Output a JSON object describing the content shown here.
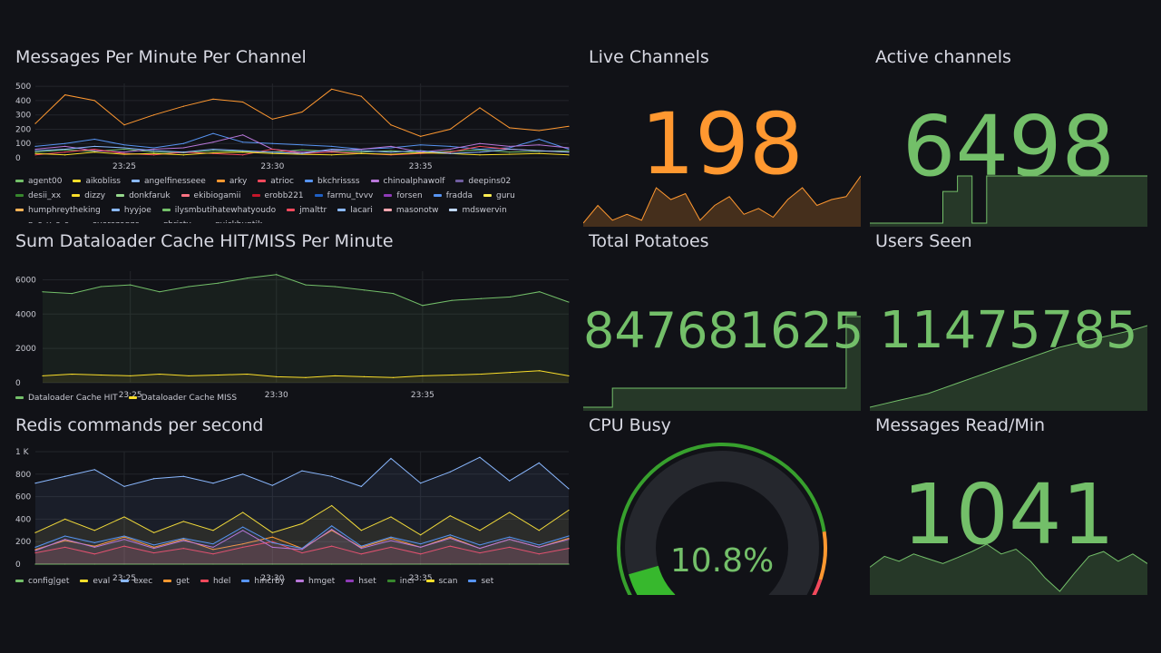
{
  "colors": {
    "background": "#111217",
    "green": "#73bf69",
    "orange": "#ff9830",
    "yellow": "#fade2a",
    "blue": "#5794f2",
    "red": "#f2495c"
  },
  "panels": {
    "messages_per_minute": {
      "title": "Messages Per Minute Per Channel",
      "legend": [
        "agent00",
        "aikobliss",
        "angelfinesseee",
        "arky",
        "atrioc",
        "bkchrissss",
        "chinoalphawolf",
        "deepins02",
        "desii_xx",
        "dizzy",
        "donkfaruk",
        "ekibiogamii",
        "erobb221",
        "farmu_tvvv",
        "forsen",
        "fradda",
        "guru",
        "humphreytheking",
        "hyyjoe",
        "ilysmbutihatewhatyoudo",
        "jmalttr",
        "lacari",
        "masonotw",
        "mdswervin",
        "n_e_v_o_s",
        "overezeggs",
        "qhristv",
        "quickhuntik"
      ]
    },
    "dataloader": {
      "title": "Sum Dataloader Cache HIT/MISS Per Minute",
      "legend": [
        "Dataloader Cache HIT",
        "Dataloader Cache MISS"
      ]
    },
    "redis": {
      "title": "Redis commands per second",
      "legend": [
        "config|get",
        "eval",
        "exec",
        "get",
        "hdel",
        "hincrby",
        "hmget",
        "hset",
        "incr",
        "scan",
        "set"
      ]
    },
    "live_channels": {
      "title": "Live Channels",
      "value": "198",
      "color": "#ff9830"
    },
    "active_channels": {
      "title": "Active channels",
      "value": "6498",
      "color": "#73bf69"
    },
    "total_potatoes": {
      "title": "Total Potatoes",
      "value": "847681625",
      "color": "#73bf69"
    },
    "users_seen": {
      "title": "Users Seen",
      "value": "11475785",
      "color": "#73bf69"
    },
    "cpu_busy": {
      "title": "CPU Busy",
      "value": "10.8%",
      "percent": 10.8
    },
    "messages_read": {
      "title": "Messages Read/Min",
      "value": "1041",
      "color": "#73bf69"
    }
  },
  "chart_data": [
    {
      "type": "line",
      "title": "Messages Per Minute Per Channel",
      "x": [
        "23:22",
        "23:23",
        "23:24",
        "23:25",
        "23:26",
        "23:27",
        "23:28",
        "23:29",
        "23:30",
        "23:31",
        "23:32",
        "23:33",
        "23:34",
        "23:35",
        "23:36",
        "23:37",
        "23:38",
        "23:39",
        "23:40"
      ],
      "xticks": [
        "23:25",
        "23:30",
        "23:35"
      ],
      "yticks": [
        0,
        100,
        200,
        300,
        400,
        500
      ],
      "ylim": [
        0,
        520
      ],
      "series": [
        {
          "name": "arky",
          "color": "#ff9830",
          "values": [
            240,
            440,
            400,
            230,
            300,
            360,
            410,
            390,
            270,
            320,
            480,
            430,
            230,
            150,
            200,
            350,
            210,
            190,
            220
          ]
        },
        {
          "name": "agent00",
          "color": "#73bf69",
          "values": [
            40,
            55,
            45,
            60,
            40,
            35,
            50,
            45,
            40,
            55,
            45,
            40,
            50,
            35,
            45,
            55,
            40,
            45,
            50
          ]
        },
        {
          "name": "bkchrissss",
          "color": "#5794f2",
          "values": [
            80,
            100,
            130,
            90,
            70,
            100,
            170,
            110,
            100,
            90,
            80,
            60,
            70,
            90,
            80,
            60,
            70,
            130,
            60
          ]
        },
        {
          "name": "chinoalphawolf",
          "color": "#b877d9",
          "values": [
            60,
            80,
            50,
            40,
            60,
            70,
            110,
            160,
            60,
            40,
            50,
            60,
            80,
            40,
            60,
            100,
            80,
            90,
            70
          ]
        },
        {
          "name": "atrioc",
          "color": "#f2495c",
          "values": [
            20,
            40,
            60,
            30,
            20,
            40,
            30,
            20,
            60,
            30,
            40,
            30,
            20,
            30,
            40,
            80,
            60,
            50,
            40
          ]
        },
        {
          "name": "angelfinesseee",
          "color": "#fade2a",
          "values": [
            30,
            20,
            40,
            25,
            30,
            20,
            35,
            40,
            30,
            25,
            20,
            30,
            25,
            35,
            30,
            20,
            25,
            30,
            20
          ]
        },
        {
          "name": "hyyjoe",
          "color": "#8ab8ff",
          "values": [
            50,
            60,
            80,
            70,
            50,
            40,
            60,
            50,
            40,
            30,
            60,
            50,
            40,
            50,
            30,
            40,
            60,
            50,
            40
          ]
        }
      ]
    },
    {
      "type": "area",
      "title": "Sum Dataloader Cache HIT/MISS Per Minute",
      "x": [
        "23:22",
        "23:23",
        "23:24",
        "23:25",
        "23:26",
        "23:27",
        "23:28",
        "23:29",
        "23:30",
        "23:31",
        "23:32",
        "23:33",
        "23:34",
        "23:35",
        "23:36",
        "23:37",
        "23:38",
        "23:39",
        "23:40"
      ],
      "xticks": [
        "23:25",
        "23:30",
        "23:35"
      ],
      "yticks": [
        0,
        2000,
        4000,
        6000
      ],
      "ylim": [
        0,
        6500
      ],
      "series": [
        {
          "name": "Dataloader Cache HIT",
          "color": "#73bf69",
          "values": [
            5300,
            5200,
            5600,
            5700,
            5300,
            5600,
            5800,
            6100,
            6300,
            5700,
            5600,
            5400,
            5200,
            4500,
            4800,
            4900,
            5000,
            5300,
            4700
          ]
        },
        {
          "name": "Dataloader Cache MISS",
          "color": "#fade2a",
          "values": [
            400,
            500,
            450,
            400,
            500,
            400,
            450,
            500,
            350,
            300,
            400,
            350,
            300,
            400,
            450,
            500,
            600,
            700,
            400
          ]
        }
      ]
    },
    {
      "type": "area",
      "title": "Redis commands per second",
      "x": [
        "23:22",
        "23:23",
        "23:24",
        "23:25",
        "23:26",
        "23:27",
        "23:28",
        "23:29",
        "23:30",
        "23:31",
        "23:32",
        "23:33",
        "23:34",
        "23:35",
        "23:36",
        "23:37",
        "23:38",
        "23:39",
        "23:40"
      ],
      "xticks": [
        "23:25",
        "23:30",
        "23:35"
      ],
      "yticks": [
        0,
        200,
        400,
        600,
        800,
        "1 K"
      ],
      "ylim": [
        0,
        1000
      ],
      "series": [
        {
          "name": "config|get",
          "color": "#73bf69",
          "values": [
            0,
            0,
            0,
            0,
            0,
            0,
            0,
            0,
            0,
            0,
            0,
            0,
            0,
            0,
            0,
            0,
            0,
            0,
            0
          ]
        },
        {
          "name": "eval",
          "color": "#fade2a",
          "values": [
            280,
            400,
            300,
            420,
            280,
            380,
            300,
            460,
            280,
            360,
            520,
            300,
            420,
            260,
            430,
            300,
            460,
            300,
            480
          ]
        },
        {
          "name": "exec",
          "color": "#8ab8ff",
          "values": [
            720,
            780,
            840,
            690,
            760,
            780,
            720,
            800,
            700,
            830,
            780,
            690,
            940,
            720,
            820,
            950,
            740,
            900,
            670
          ]
        },
        {
          "name": "get",
          "color": "#ff9830",
          "values": [
            130,
            210,
            160,
            240,
            150,
            220,
            130,
            180,
            240,
            140,
            300,
            150,
            230,
            150,
            240,
            140,
            220,
            150,
            230
          ]
        },
        {
          "name": "hdel",
          "color": "#f2495c",
          "values": [
            100,
            150,
            90,
            160,
            100,
            140,
            90,
            150,
            200,
            100,
            160,
            90,
            150,
            90,
            160,
            100,
            150,
            90,
            140
          ]
        },
        {
          "name": "hincrby",
          "color": "#5794f2",
          "values": [
            150,
            250,
            190,
            250,
            170,
            230,
            180,
            330,
            190,
            140,
            340,
            160,
            240,
            180,
            260,
            170,
            240,
            170,
            250
          ]
        },
        {
          "name": "hmget",
          "color": "#b877d9",
          "values": [
            120,
            220,
            150,
            220,
            140,
            210,
            150,
            300,
            150,
            130,
            310,
            140,
            210,
            150,
            230,
            140,
            220,
            150,
            220
          ]
        }
      ]
    },
    {
      "type": "area",
      "title": "Live Channels",
      "values": [
        140,
        200,
        150,
        170,
        150,
        260,
        220,
        240,
        150,
        200,
        230,
        170,
        190,
        160,
        220,
        260,
        200,
        220,
        230,
        300
      ]
    },
    {
      "type": "area",
      "title": "Active channels",
      "values": [
        6200,
        6200,
        6200,
        6200,
        6200,
        6400,
        6498,
        6200,
        6498,
        6498,
        6498,
        6498,
        6498,
        6498,
        6498,
        6498,
        6498,
        6498,
        6498,
        6498
      ]
    },
    {
      "type": "area",
      "title": "Total Potatoes",
      "values": [
        800000000,
        800000000,
        810000000,
        810000000,
        810000000,
        810000000,
        810000000,
        810000000,
        810000000,
        810000000,
        810000000,
        810000000,
        810000000,
        810000000,
        810000000,
        810000000,
        810000000,
        810000000,
        847681625,
        847681625
      ]
    },
    {
      "type": "area",
      "title": "Users Seen",
      "values": [
        11000000,
        11020000,
        11040000,
        11060000,
        11080000,
        11110000,
        11140000,
        11170000,
        11200000,
        11230000,
        11260000,
        11290000,
        11320000,
        11350000,
        11370000,
        11390000,
        11410000,
        11430000,
        11450000,
        11475785
      ]
    },
    {
      "type": "area",
      "title": "Messages Read/Min",
      "values": [
        850,
        940,
        900,
        960,
        920,
        880,
        930,
        980,
        1041,
        960,
        1000,
        900,
        760,
        650,
        800,
        940,
        980,
        900,
        960,
        880
      ]
    }
  ]
}
